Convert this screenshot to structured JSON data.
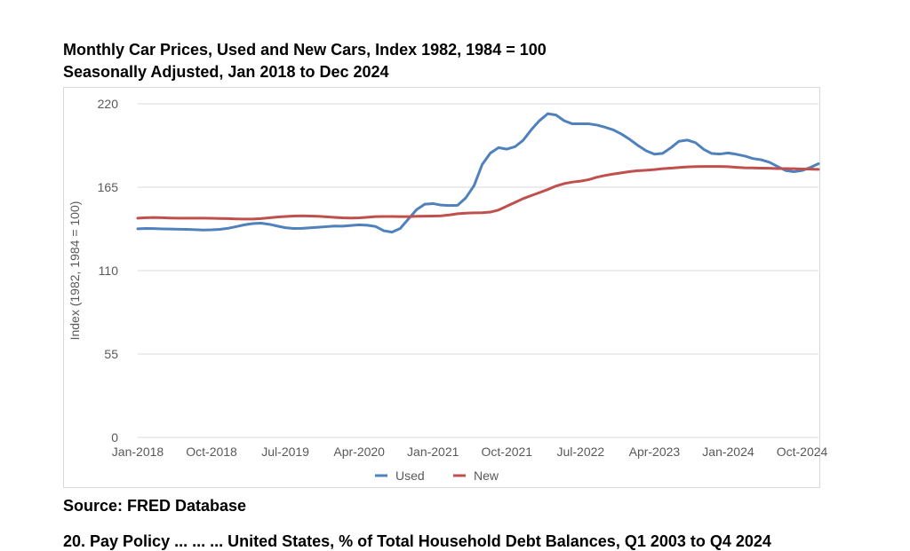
{
  "chart_data": {
    "type": "line",
    "title": "Monthly Car Prices, Used and New Cars, Index 1982, 1984 = 100",
    "subtitle": "Seasonally Adjusted, Jan 2018 to Dec 2024",
    "xlabel": "",
    "ylabel": "Index (1982, 1984 = 100)",
    "ylim": [
      0,
      220
    ],
    "yticks": [
      "0",
      "55",
      "110",
      "165",
      "220"
    ],
    "xlim": [
      0,
      83
    ],
    "xticks": [
      {
        "label": "Jan-2018",
        "x": 0
      },
      {
        "label": "Oct-2018",
        "x": 9
      },
      {
        "label": "Jul-2019",
        "x": 18
      },
      {
        "label": "Apr-2020",
        "x": 27
      },
      {
        "label": "Jan-2021",
        "x": 36
      },
      {
        "label": "Oct-2021",
        "x": 45
      },
      {
        "label": "Jul-2022",
        "x": 54
      },
      {
        "label": "Apr-2023",
        "x": 63
      },
      {
        "label": "Jan-2024",
        "x": 72
      },
      {
        "label": "Oct-2024",
        "x": 81
      }
    ],
    "grid": true,
    "legend": "bottom",
    "series": [
      {
        "name": "Used",
        "color": "#4f81bd",
        "values": [
          137.6,
          137.8,
          137.7,
          137.5,
          137.4,
          137.3,
          137.2,
          137.0,
          136.8,
          136.9,
          137.2,
          137.9,
          139.0,
          140.2,
          141.0,
          141.3,
          140.6,
          139.4,
          138.3,
          137.8,
          137.9,
          138.2,
          138.6,
          139.0,
          139.4,
          139.3,
          139.8,
          140.2,
          139.9,
          139.1,
          136.3,
          135.4,
          137.8,
          144.0,
          150.2,
          153.8,
          154.2,
          153.2,
          152.9,
          153.1,
          158.0,
          166.0,
          180.0,
          187.5,
          191.1,
          190.1,
          191.7,
          196.0,
          203.0,
          209.0,
          213.5,
          212.6,
          208.8,
          206.8,
          206.8,
          206.8,
          206.0,
          204.5,
          202.8,
          200.0,
          196.5,
          192.5,
          189.0,
          186.8,
          187.3,
          191.0,
          195.3,
          196.1,
          194.4,
          190.0,
          187.2,
          186.9,
          187.6,
          186.7,
          185.6,
          183.9,
          183.1,
          181.5,
          178.7,
          176.0,
          175.2,
          176.0,
          178.0,
          180.5
        ]
      },
      {
        "name": "New",
        "color": "#c0504d",
        "values": [
          144.6,
          144.9,
          145.0,
          144.9,
          144.7,
          144.6,
          144.6,
          144.6,
          144.6,
          144.5,
          144.4,
          144.3,
          144.1,
          144.0,
          144.0,
          144.3,
          144.8,
          145.3,
          145.7,
          146.0,
          146.1,
          146.0,
          145.8,
          145.5,
          145.1,
          144.8,
          144.7,
          144.8,
          145.2,
          145.6,
          145.7,
          145.7,
          145.6,
          145.6,
          145.8,
          145.9,
          146.0,
          146.1,
          146.7,
          147.5,
          147.9,
          148.1,
          148.2,
          148.6,
          150.0,
          152.5,
          155.0,
          157.5,
          159.5,
          161.5,
          163.5,
          165.8,
          167.4,
          168.4,
          169.0,
          170.0,
          171.6,
          172.8,
          173.7,
          174.5,
          175.3,
          175.9,
          176.2,
          176.6,
          177.2,
          177.6,
          178.0,
          178.4,
          178.6,
          178.7,
          178.7,
          178.7,
          178.5,
          178.1,
          177.8,
          177.7,
          177.6,
          177.5,
          177.3,
          177.3,
          177.2,
          177.0,
          176.9,
          176.8
        ]
      }
    ]
  },
  "footer": {
    "source": "Source: FRED Database",
    "next_caption_partial": "20. Pay Policy ... ... ... United States, % of Total Household Debt Balances, Q1 2003 to Q4 2024"
  }
}
